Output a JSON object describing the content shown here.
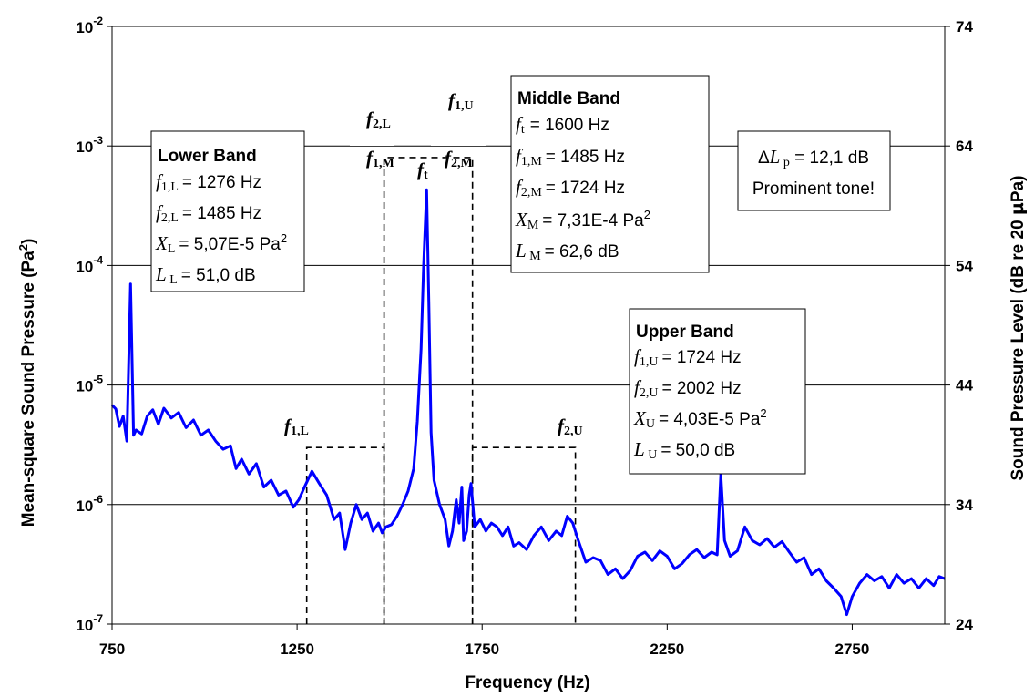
{
  "chart_data": {
    "type": "line",
    "xlabel": "Frequency (Hz)",
    "ylabel_left": "Mean-square Sound Pressure (Pa²)",
    "ylabel_right": "Sound Pressure Level (dB re 20 µPa)",
    "xlim": [
      750,
      3000
    ],
    "ylim_left": [
      1e-07,
      0.01
    ],
    "y_scale": "log",
    "ylim_right": [
      24,
      74
    ],
    "grid": "horizontal",
    "x_ticks": [
      750,
      1250,
      1750,
      2250,
      2750
    ],
    "y_ticks_left": [
      "10-7",
      "10-6",
      "10-5",
      "10-4",
      "10-3",
      "10-2"
    ],
    "y_ticks_right": [
      24,
      34,
      44,
      54,
      64,
      74
    ],
    "series_color": "#0000ff",
    "series": [
      {
        "points": [
          [
            750,
            6.8e-06
          ],
          [
            760,
            6.3e-06
          ],
          [
            770,
            4.5e-06
          ],
          [
            780,
            5.5e-06
          ],
          [
            790,
            3.4e-06
          ],
          [
            800,
            7e-05
          ],
          [
            808,
            3.8e-06
          ],
          [
            815,
            4.2e-06
          ],
          [
            830,
            3.9e-06
          ],
          [
            845,
            5.5e-06
          ],
          [
            860,
            6.2e-06
          ],
          [
            875,
            4.7e-06
          ],
          [
            890,
            6.4e-06
          ],
          [
            910,
            5.3e-06
          ],
          [
            930,
            5.9e-06
          ],
          [
            950,
            4.4e-06
          ],
          [
            970,
            5.1e-06
          ],
          [
            990,
            3.8e-06
          ],
          [
            1010,
            4.2e-06
          ],
          [
            1030,
            3.4e-06
          ],
          [
            1050,
            2.9e-06
          ],
          [
            1070,
            3.1e-06
          ],
          [
            1085,
            2e-06
          ],
          [
            1100,
            2.4e-06
          ],
          [
            1120,
            1.8e-06
          ],
          [
            1140,
            2.2e-06
          ],
          [
            1160,
            1.4e-06
          ],
          [
            1180,
            1.6e-06
          ],
          [
            1200,
            1.2e-06
          ],
          [
            1220,
            1.3e-06
          ],
          [
            1240,
            9.5e-07
          ],
          [
            1255,
            1.1e-06
          ],
          [
            1270,
            1.4e-06
          ],
          [
            1290,
            1.9e-06
          ],
          [
            1310,
            1.5e-06
          ],
          [
            1330,
            1.2e-06
          ],
          [
            1350,
            7.5e-07
          ],
          [
            1365,
            8.5e-07
          ],
          [
            1380,
            4.2e-07
          ],
          [
            1395,
            7e-07
          ],
          [
            1410,
            1e-06
          ],
          [
            1425,
            7.5e-07
          ],
          [
            1440,
            8.5e-07
          ],
          [
            1455,
            6e-07
          ],
          [
            1470,
            7e-07
          ],
          [
            1480,
            5.8e-07
          ],
          [
            1490,
            6.5e-07
          ],
          [
            1505,
            6.8e-07
          ],
          [
            1520,
            8e-07
          ],
          [
            1535,
            1e-06
          ],
          [
            1550,
            1.3e-06
          ],
          [
            1565,
            2e-06
          ],
          [
            1575,
            5e-06
          ],
          [
            1585,
            2e-05
          ],
          [
            1592,
            0.0001
          ],
          [
            1600,
            0.00043
          ],
          [
            1606,
            5e-05
          ],
          [
            1612,
            4e-06
          ],
          [
            1620,
            1.6e-06
          ],
          [
            1635,
            1e-06
          ],
          [
            1650,
            7.5e-07
          ],
          [
            1660,
            4.5e-07
          ],
          [
            1670,
            6e-07
          ],
          [
            1680,
            1.1e-06
          ],
          [
            1688,
            7e-07
          ],
          [
            1695,
            1.4e-06
          ],
          [
            1700,
            5e-07
          ],
          [
            1708,
            6e-07
          ],
          [
            1715,
            1.2e-06
          ],
          [
            1720,
            1.5e-06
          ],
          [
            1730,
            6.5e-07
          ],
          [
            1745,
            7.5e-07
          ],
          [
            1760,
            6e-07
          ],
          [
            1775,
            7e-07
          ],
          [
            1790,
            6.5e-07
          ],
          [
            1805,
            5.5e-07
          ],
          [
            1820,
            6.5e-07
          ],
          [
            1835,
            4.5e-07
          ],
          [
            1850,
            4.8e-07
          ],
          [
            1870,
            4.2e-07
          ],
          [
            1890,
            5.5e-07
          ],
          [
            1910,
            6.5e-07
          ],
          [
            1930,
            5e-07
          ],
          [
            1950,
            6e-07
          ],
          [
            1965,
            5.5e-07
          ],
          [
            1980,
            8e-07
          ],
          [
            1995,
            7e-07
          ],
          [
            2010,
            5e-07
          ],
          [
            2030,
            3.3e-07
          ],
          [
            2050,
            3.6e-07
          ],
          [
            2070,
            3.4e-07
          ],
          [
            2090,
            2.6e-07
          ],
          [
            2110,
            2.9e-07
          ],
          [
            2130,
            2.4e-07
          ],
          [
            2150,
            2.8e-07
          ],
          [
            2170,
            3.7e-07
          ],
          [
            2190,
            4e-07
          ],
          [
            2210,
            3.4e-07
          ],
          [
            2230,
            4.1e-07
          ],
          [
            2250,
            3.7e-07
          ],
          [
            2270,
            2.9e-07
          ],
          [
            2290,
            3.2e-07
          ],
          [
            2310,
            3.8e-07
          ],
          [
            2330,
            4.2e-07
          ],
          [
            2350,
            3.6e-07
          ],
          [
            2370,
            4e-07
          ],
          [
            2385,
            3.8e-07
          ],
          [
            2395,
            1.8e-06
          ],
          [
            2405,
            5e-07
          ],
          [
            2420,
            3.7e-07
          ],
          [
            2440,
            4.1e-07
          ],
          [
            2460,
            6.5e-07
          ],
          [
            2480,
            5e-07
          ],
          [
            2500,
            4.6e-07
          ],
          [
            2520,
            5.2e-07
          ],
          [
            2540,
            4.4e-07
          ],
          [
            2560,
            4.9e-07
          ],
          [
            2580,
            4e-07
          ],
          [
            2600,
            3.3e-07
          ],
          [
            2620,
            3.6e-07
          ],
          [
            2640,
            2.6e-07
          ],
          [
            2660,
            2.9e-07
          ],
          [
            2680,
            2.3e-07
          ],
          [
            2700,
            2e-07
          ],
          [
            2720,
            1.7e-07
          ],
          [
            2735,
            1.2e-07
          ],
          [
            2750,
            1.7e-07
          ],
          [
            2770,
            2.2e-07
          ],
          [
            2790,
            2.6e-07
          ],
          [
            2810,
            2.3e-07
          ],
          [
            2830,
            2.5e-07
          ],
          [
            2850,
            2e-07
          ],
          [
            2870,
            2.6e-07
          ],
          [
            2890,
            2.2e-07
          ],
          [
            2910,
            2.4e-07
          ],
          [
            2930,
            2e-07
          ],
          [
            2950,
            2.4e-07
          ],
          [
            2970,
            2.1e-07
          ],
          [
            2985,
            2.5e-07
          ],
          [
            3000,
            2.4e-07
          ]
        ]
      }
    ],
    "bands": [
      {
        "name": "Lower",
        "f1": 1276,
        "f2": 1485,
        "top": 3e-06
      },
      {
        "name": "Middle",
        "f1": 1485,
        "f2": 1724,
        "top": 0.0008
      },
      {
        "name": "Upper",
        "f1": 1724,
        "f2": 2002,
        "top": 3e-06
      }
    ],
    "annotations": {
      "lower_band": {
        "title": "Lower Band",
        "f1": {
          "sym": "f",
          "sub": "1,L",
          "val": "= 1276 Hz"
        },
        "f2": {
          "sym": "f",
          "sub": "2,L",
          "val": "= 1485 Hz"
        },
        "x": {
          "sym": "X",
          "sub": "L",
          "val": "= 5,07E-5 Pa",
          "sup": "2"
        },
        "l": {
          "sym": "L",
          "sub": " L",
          "val": "= 51,0 dB"
        }
      },
      "middle_band": {
        "title": "Middle Band",
        "ft": {
          "sym": "f",
          "sub": "t",
          "val": "= 1600 Hz"
        },
        "f1": {
          "sym": "f",
          "sub": "1,M",
          "val": "= 1485 Hz"
        },
        "f2": {
          "sym": "f",
          "sub": "2,M",
          "val": "= 1724 Hz"
        },
        "x": {
          "sym": "X",
          "sub": "M",
          "val": "= 7,31E-4 Pa",
          "sup": "2"
        },
        "l": {
          "sym": "L",
          "sub": " M",
          "val": "= 62,6 dB"
        }
      },
      "upper_band": {
        "title": "Upper Band",
        "f1": {
          "sym": "f",
          "sub": "1,U",
          "val": "= 1724 Hz"
        },
        "f2": {
          "sym": "f",
          "sub": "2,U",
          "val": "= 2002 Hz"
        },
        "x": {
          "sym": "X",
          "sub": "U",
          "val": "= 4,03E-5 Pa",
          "sup": "2"
        },
        "l": {
          "sym": "L",
          "sub": " U",
          "val": "= 50,0 dB"
        }
      },
      "delta": {
        "line1": "ΔL p = 12,1 dB",
        "line2": "Prominent tone!"
      },
      "freq_labels": {
        "f1L": {
          "sym": "f",
          "sub": "1,L"
        },
        "f2L": {
          "sym": "f",
          "sub": "2,L"
        },
        "f1M": {
          "sym": "f",
          "sub": "1,M"
        },
        "f1U": {
          "sym": "f",
          "sub": "1,U"
        },
        "f2M": {
          "sym": "f",
          "sub": "2,M"
        },
        "ft": {
          "sym": "f",
          "sub": "t"
        },
        "f2U": {
          "sym": "f",
          "sub": "2,U"
        }
      }
    }
  }
}
